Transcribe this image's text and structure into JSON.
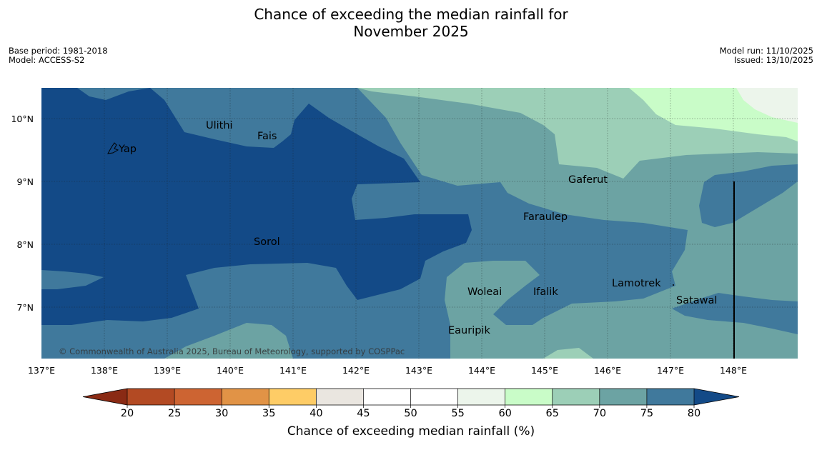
{
  "title_line1": "Chance of exceeding the median rainfall for",
  "title_line2": "November 2025",
  "meta": {
    "base_period": "Base period: 1981-2018",
    "model": "Model: ACCESS-S2",
    "model_run": "Model run: 11/10/2025",
    "issued": "Issued: 13/10/2025"
  },
  "map": {
    "lon_ticks": [
      "137°E",
      "138°E",
      "139°E",
      "140°E",
      "141°E",
      "142°E",
      "143°E",
      "144°E",
      "145°E",
      "146°E",
      "147°E",
      "148°E"
    ],
    "lat_ticks": [
      "10°N",
      "9°N",
      "8°N",
      "7°N"
    ],
    "places": [
      {
        "name": "Yap",
        "lon": 138.24,
        "lat": 9.49
      },
      {
        "name": "Ulithi",
        "lon": 139.62,
        "lat": 9.86
      },
      {
        "name": "Fais",
        "lon": 140.42,
        "lat": 9.72
      },
      {
        "name": "Sorol",
        "lon": 140.36,
        "lat": 8.03
      },
      {
        "name": "Gaferut",
        "lon": 145.36,
        "lat": 9.04
      },
      {
        "name": "Faraulep",
        "lon": 144.65,
        "lat": 8.44
      },
      {
        "name": "Woleai",
        "lon": 143.84,
        "lat": 7.25
      },
      {
        "name": "Ifalik",
        "lon": 144.68,
        "lat": 7.25
      },
      {
        "name": "Lamotrek",
        "lon": 146.04,
        "lat": 7.38
      },
      {
        "name": "Satawal",
        "lon": 147.07,
        "lat": 7.1
      },
      {
        "name": "Eauripik",
        "lon": 143.52,
        "lat": 6.63
      }
    ],
    "copyright": "© Commonwealth of Australia 2025, Bureau of Meteorology, supported by COSPPac"
  },
  "colorbar": {
    "ticks": [
      "20",
      "25",
      "30",
      "35",
      "40",
      "45",
      "50",
      "55",
      "60",
      "65",
      "70",
      "75",
      "80"
    ],
    "colors": [
      "#8a2a14",
      "#b34a23",
      "#cd6432",
      "#e19346",
      "#fecc66",
      "#eae6e0",
      "#ffffff",
      "#ffffff",
      "#ecf5eb",
      "#c9fcc8",
      "#9ccfb7",
      "#6ca3a3",
      "#40799c",
      "#134a87"
    ],
    "label": "Chance of exceeding median rainfall (%)"
  }
}
